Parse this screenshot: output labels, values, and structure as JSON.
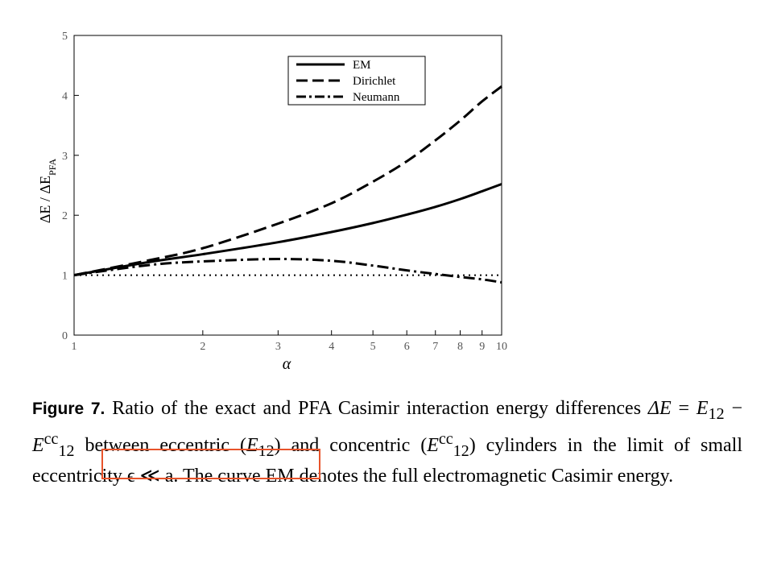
{
  "chart_data": {
    "type": "line",
    "xlabel": "α",
    "ylabel": "ΔE / ΔE_PFA",
    "xscale": "log",
    "xlim": [
      1,
      10
    ],
    "ylim": [
      0,
      5
    ],
    "xticks": [
      1,
      2,
      3,
      4,
      5,
      6,
      7,
      8,
      9,
      10
    ],
    "yticks": [
      0,
      1,
      2,
      3,
      4,
      5
    ],
    "grid": false,
    "legend": "top-right",
    "series": [
      {
        "name": "EM",
        "style": "solid",
        "x": [
          1,
          1.5,
          2,
          3,
          4,
          5,
          6,
          7,
          8,
          9,
          10
        ],
        "y": [
          1.0,
          1.22,
          1.35,
          1.55,
          1.72,
          1.87,
          2.01,
          2.14,
          2.27,
          2.4,
          2.52
        ]
      },
      {
        "name": "Dirichlet",
        "style": "dashed",
        "x": [
          1,
          1.5,
          2,
          3,
          4,
          5,
          6,
          7,
          8,
          9,
          10
        ],
        "y": [
          1.0,
          1.25,
          1.45,
          1.86,
          2.2,
          2.56,
          2.9,
          3.25,
          3.58,
          3.9,
          4.15
        ]
      },
      {
        "name": "Neumann",
        "style": "dash-dot",
        "x": [
          1,
          1.5,
          2,
          3,
          4,
          5,
          6,
          7,
          8,
          9,
          10
        ],
        "y": [
          1.0,
          1.17,
          1.23,
          1.27,
          1.24,
          1.16,
          1.08,
          1.02,
          0.97,
          0.93,
          0.88
        ]
      },
      {
        "name": "",
        "style": "dotted",
        "x": [
          1,
          10
        ],
        "y": [
          1.0,
          1.0
        ]
      }
    ]
  },
  "caption": {
    "label": "Figure 7.",
    "seg1": " Ratio of the exact and PFA Casimir interaction energy differences ",
    "delta_e": "ΔE",
    "eq": " = ",
    "e12": "E",
    "sub12": "12",
    "minus": " − ",
    "ecc": "E",
    "sup_cc": "cc",
    "sub_cc": "12",
    "seg2": " between eccentric (",
    "e12b": "E",
    "sub12b": "12",
    "seg3": ") and concentric (",
    "ecc2": "E",
    "sup_cc2": "cc",
    "sub_cc2": "12",
    "seg4": ") cylinders in the limit of ",
    "highlight": "small eccentricity ϵ ≪ a",
    "seg5": ". The curve EM denotes the full electromagnetic Casimir energy."
  }
}
